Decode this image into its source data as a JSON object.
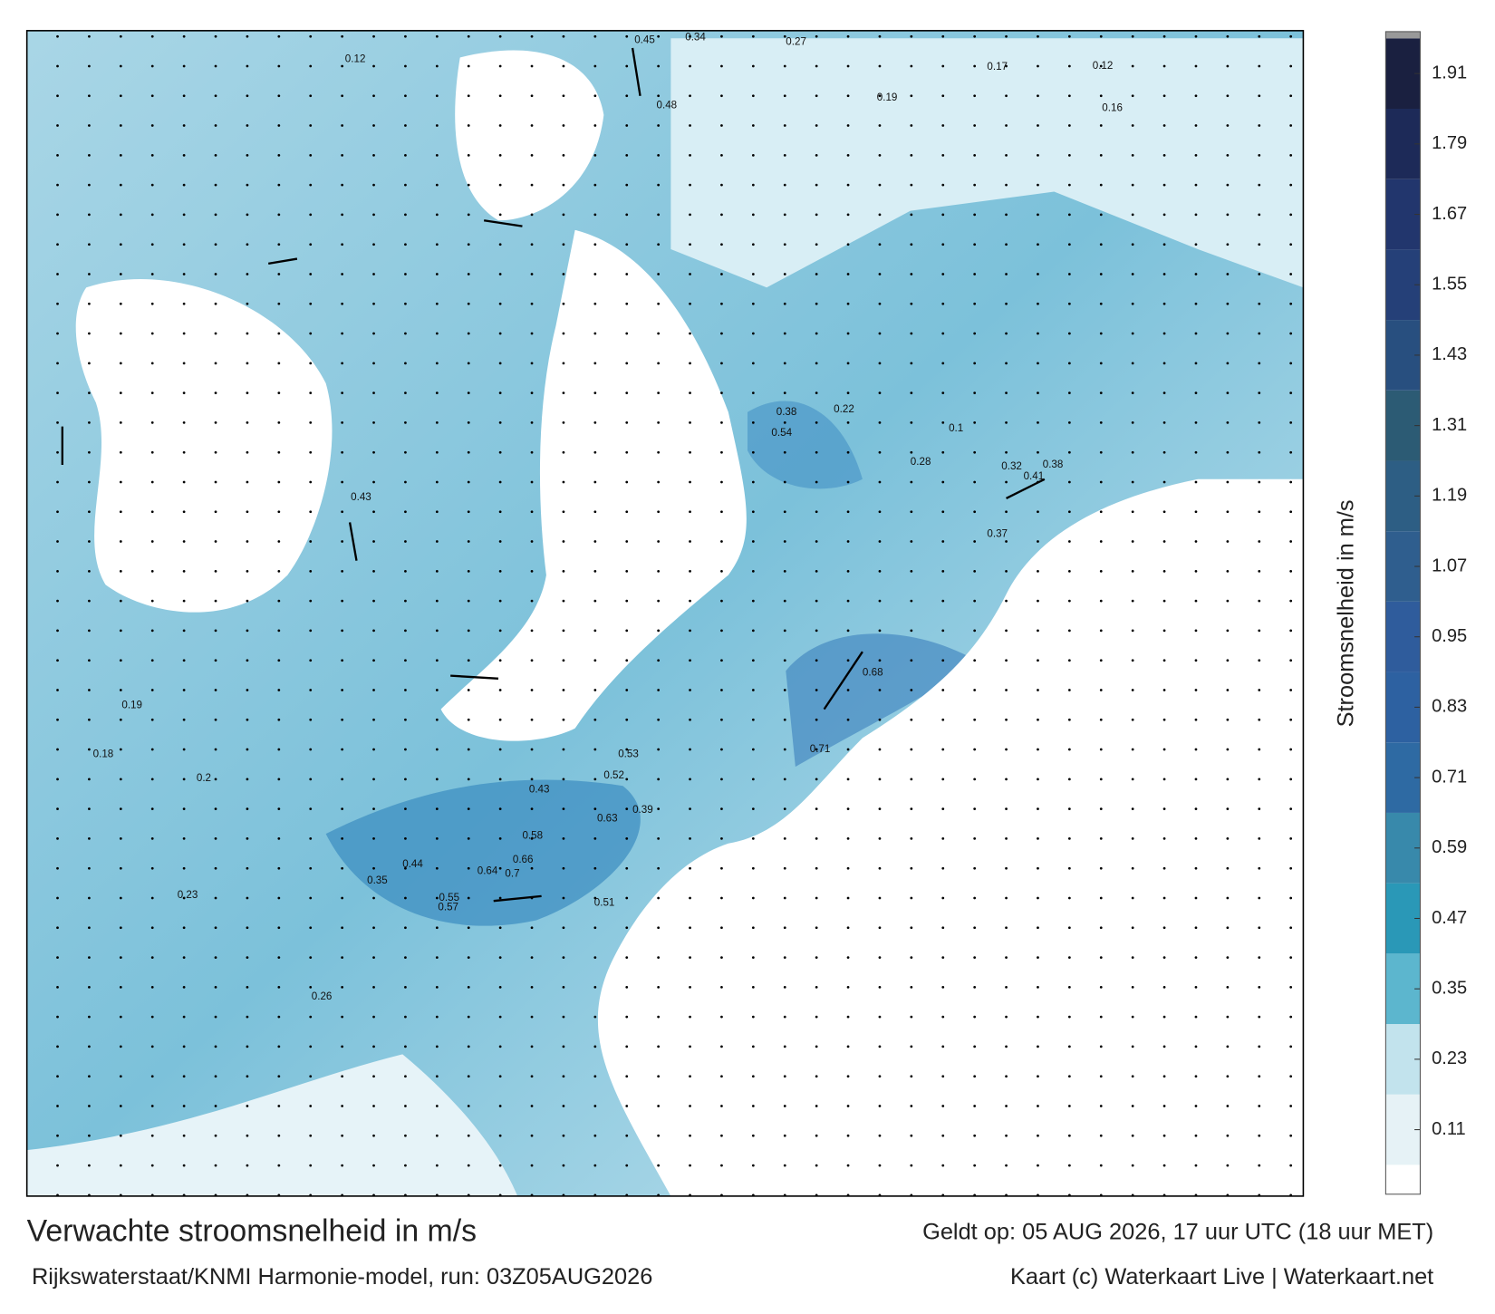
{
  "title": "Verwachte stroomsnelheid in m/s",
  "valid_time": "Geldt op: 05 AUG 2026, 17 uur UTC (18 uur MET)",
  "source": "Rijkswaterstaat/KNMI Harmonie-model, run: 03Z05AUG2026",
  "credit": "Kaart (c) Waterkaart Live | Waterkaart.net",
  "colorbar": {
    "label": "Stroomsnelheid in m/s",
    "lim": [
      0,
      1.97
    ],
    "ticks": [
      0.11,
      0.23,
      0.35,
      0.47,
      0.59,
      0.71,
      0.83,
      0.95,
      1.07,
      1.19,
      1.31,
      1.43,
      1.55,
      1.67,
      1.79,
      1.91
    ],
    "colors": [
      "#e6f2f6",
      "#c2e3ed",
      "#5cb6ce",
      "#2a98b7",
      "#3889ab",
      "#2e6aa3",
      "#2d61a1",
      "#2f5c9c",
      "#2f5e8e",
      "#2d5e84",
      "#2c5b74",
      "#284f7f",
      "#254078",
      "#22366d",
      "#1d2a58",
      "#1a2040"
    ]
  },
  "map_labels": [
    0.45,
    0.34,
    0.27,
    0.48,
    0.38,
    0.54,
    0.41,
    0.38,
    0.68,
    0.71,
    0.63,
    0.58,
    0.66,
    0.7,
    0.64,
    0.57,
    0.55,
    0.52,
    0.53,
    0.43,
    0.39,
    0.44,
    0.35,
    0.19,
    0.18,
    0.2,
    0.23,
    0.26,
    0.19,
    0.17,
    0.12,
    0.16,
    0.22,
    0.32,
    0.12,
    0.1,
    0.43,
    0.51,
    0.37,
    0.28
  ]
}
